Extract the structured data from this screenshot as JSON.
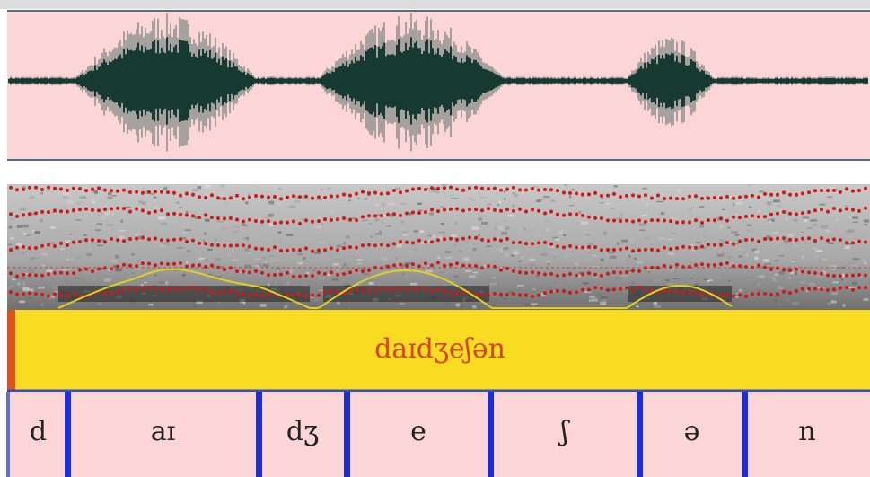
{
  "word_tier": {
    "text": "daɪdʒeʃən"
  },
  "phone_tier": {
    "labels": [
      "d",
      "aɪ",
      "dʒ",
      "e",
      "ʃ",
      "ə",
      "n"
    ]
  }
}
